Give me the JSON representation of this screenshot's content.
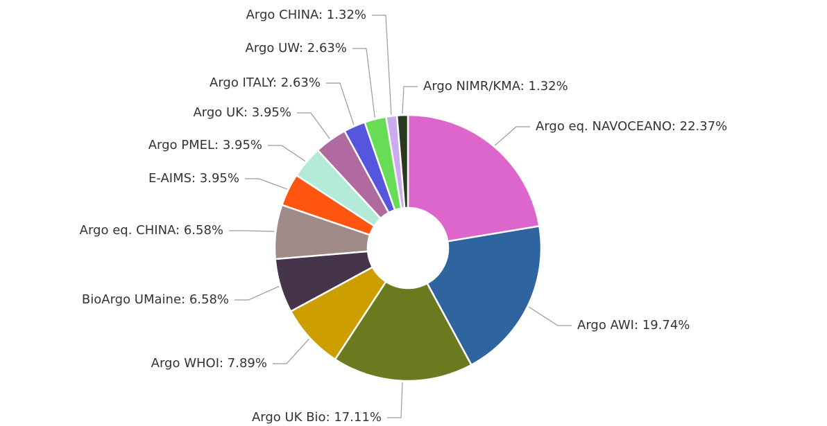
{
  "chart_data": {
    "type": "pie",
    "values": [
      22.37,
      19.74,
      17.11,
      7.89,
      6.58,
      6.58,
      3.95,
      3.95,
      3.95,
      2.63,
      2.63,
      1.32,
      1.32
    ],
    "value_labels": [
      "Argo eq. NAVOCEANO: 22.37%",
      "Argo AWI: 19.74%",
      "Argo UK Bio: 17.11%",
      "Argo WHOI: 7.89%",
      "BioArgo UMaine: 6.58%",
      "Argo eq. CHINA: 6.58%",
      "E-AIMS: 3.95%",
      "Argo PMEL: 3.95%",
      "Argo UK: 3.95%",
      "Argo ITALY: 2.63%",
      "Argo UW: 2.63%",
      "Argo CHINA: 1.32%",
      "Argo NIMR/KMA: 1.32%"
    ],
    "colors": [
      "#dd66cc",
      "#2e64a0",
      "#6b7a1e",
      "#cc9e00",
      "#45344a",
      "#a08a88",
      "#ff5511",
      "#b3ead8",
      "#b06aa0",
      "#5555dd",
      "#66dd55",
      "#ccaaee",
      "#2a3a20"
    ],
    "donut": true
  }
}
